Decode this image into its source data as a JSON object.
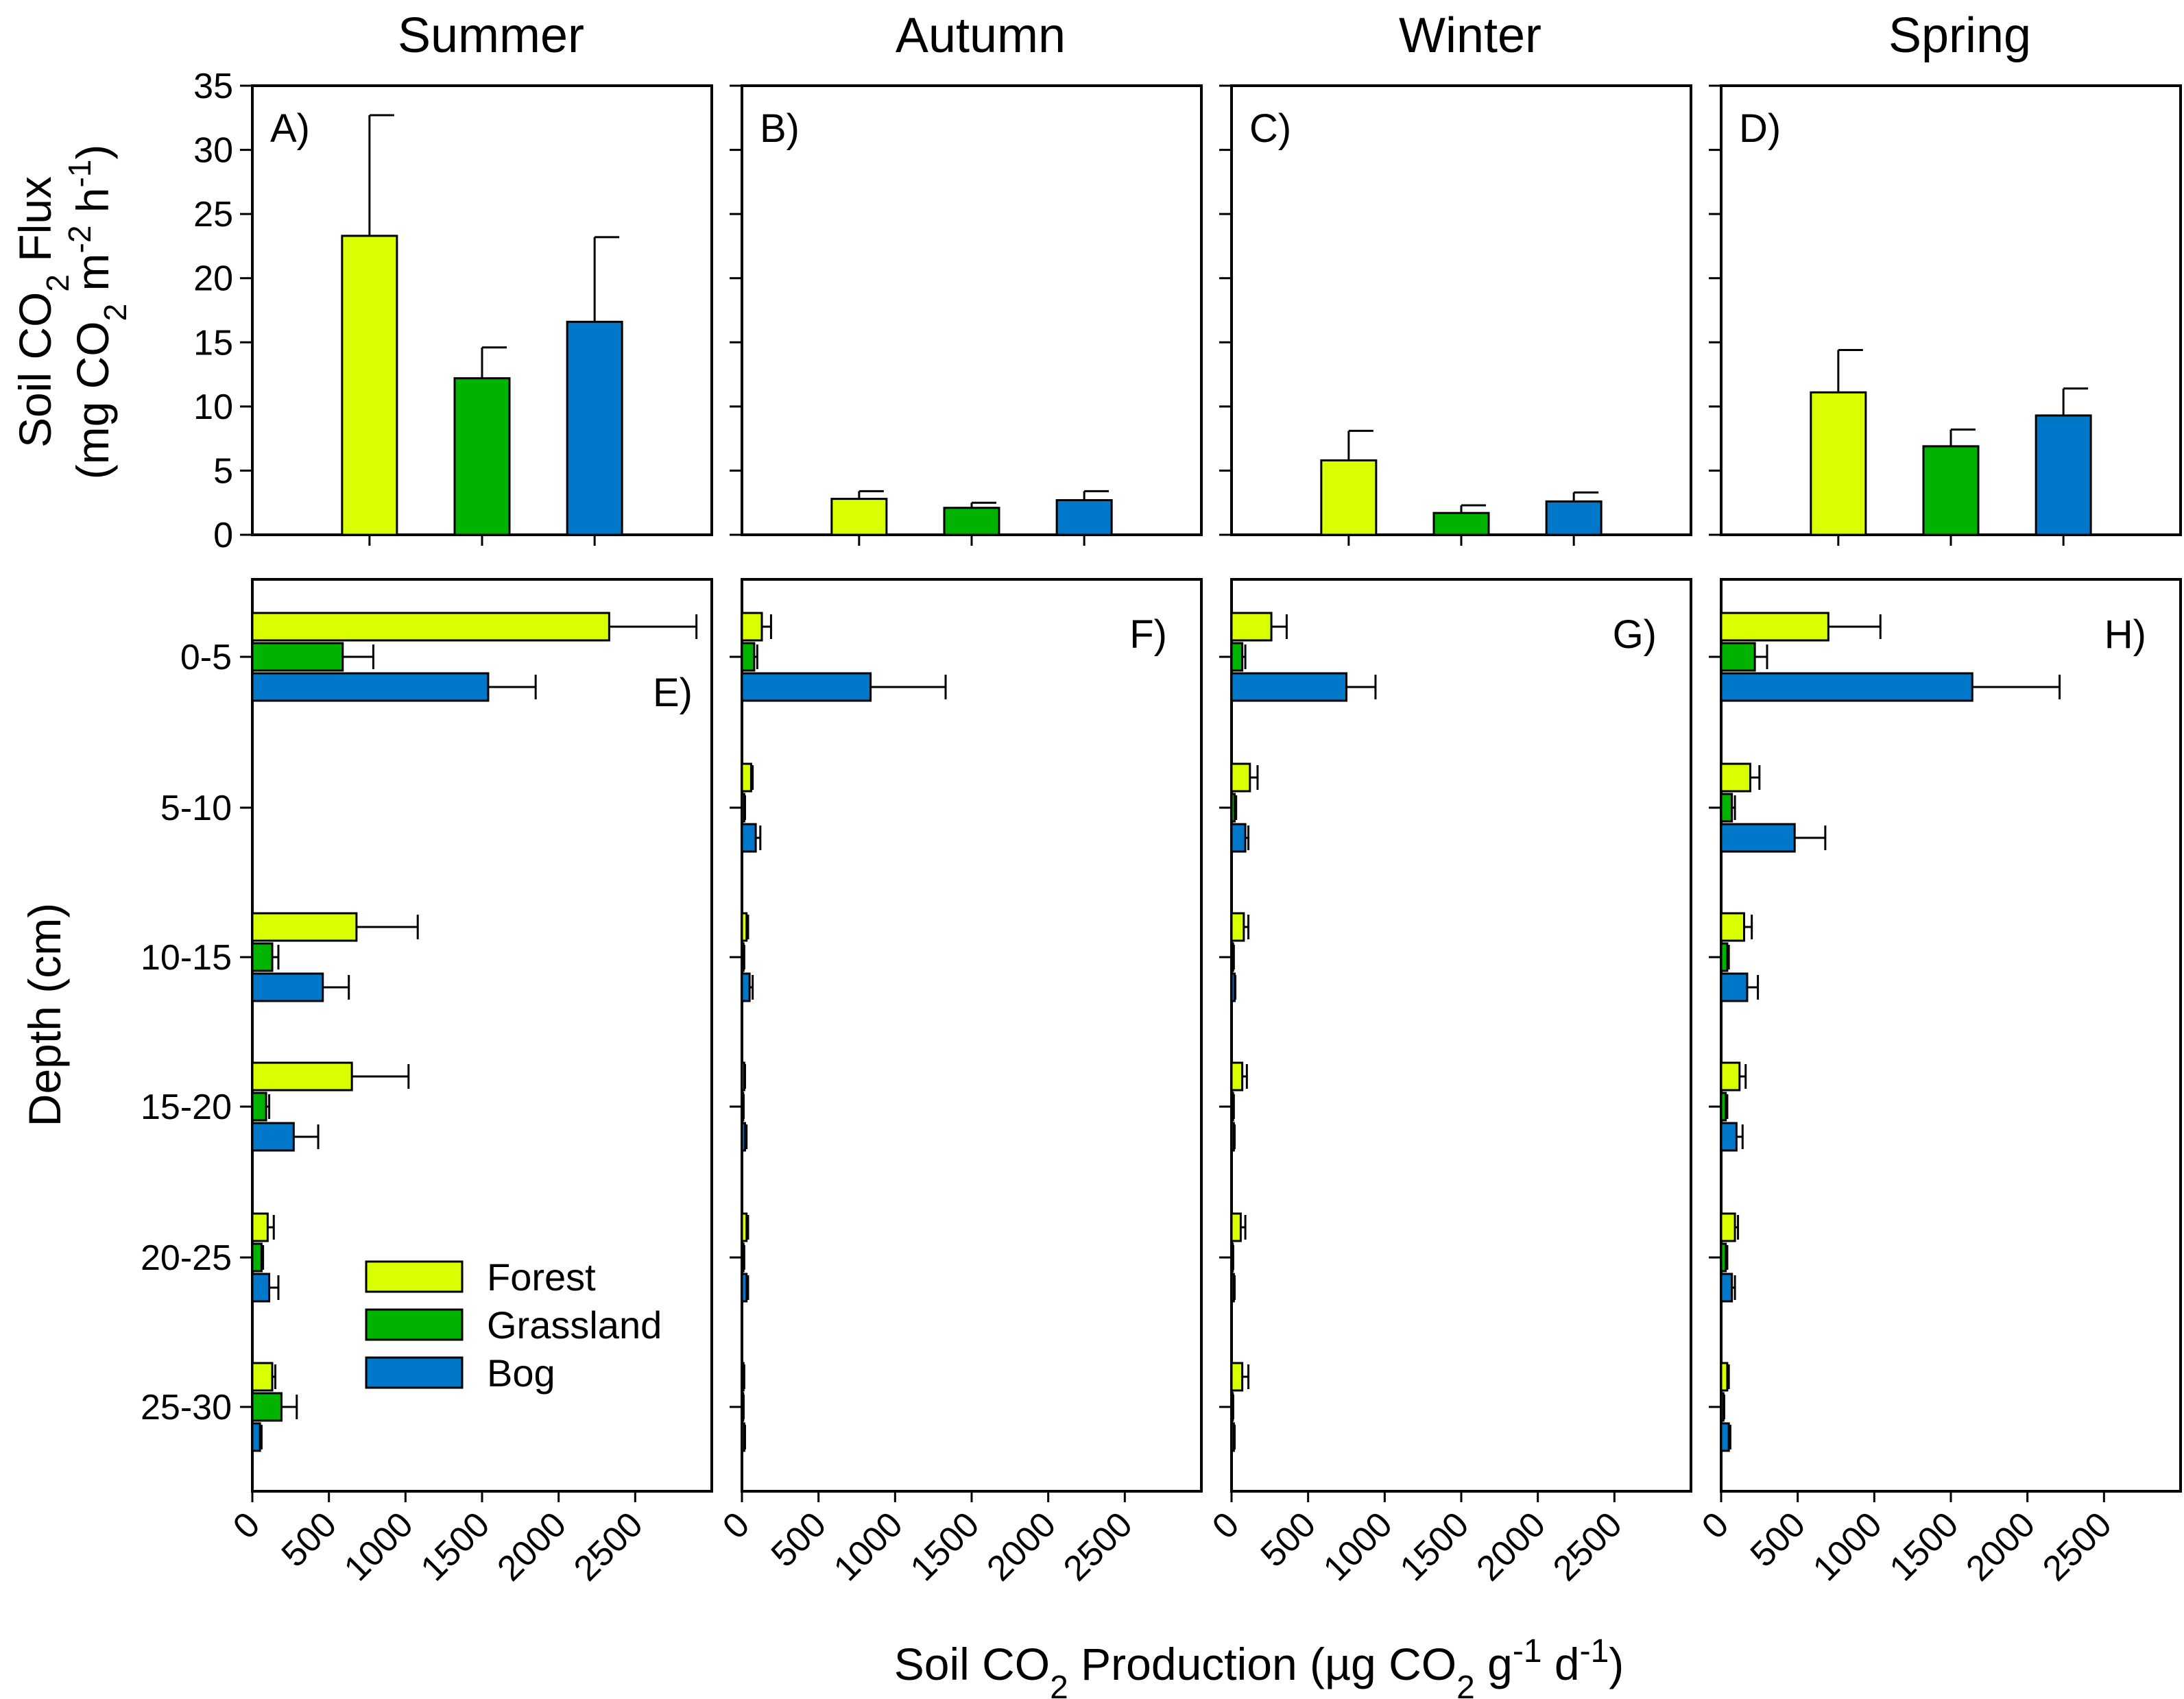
{
  "chart_data": {
    "type": "bar",
    "seasons": [
      "Summer",
      "Autumn",
      "Winter",
      "Spring"
    ],
    "colors": {
      "Forest": "#d9ff00",
      "Grassland": "#00b300",
      "Bog": "#0077c8"
    },
    "legend": {
      "entries": [
        "Forest",
        "Grassland",
        "Bog"
      ],
      "placement": "bottom-right of panel E"
    },
    "flux": {
      "ylabel_line1": "Soil CO",
      "ylabel_sub1": "2",
      "ylabel_mid": " Flux",
      "ylabel_line2": "(mg CO",
      "ylabel_sub2": "2",
      "ylabel_m": " m",
      "ylabel_sup1": "-2",
      "ylabel_h": " h",
      "ylabel_sup2": "-1",
      "ylabel_close": ")",
      "ylim": [
        0,
        35
      ],
      "yticks": [
        "0",
        "5",
        "10",
        "15",
        "20",
        "25",
        "30",
        "35"
      ],
      "panel_labels": [
        "A)",
        "B)",
        "C)",
        "D)"
      ],
      "series": [
        {
          "name": "Forest",
          "values": [
            23.3,
            2.8,
            5.8,
            11.1
          ],
          "errors": [
            9.4,
            0.6,
            2.3,
            3.3
          ]
        },
        {
          "name": "Grassland",
          "values": [
            12.2,
            2.1,
            1.7,
            6.9
          ],
          "errors": [
            2.4,
            0.4,
            0.6,
            1.3
          ]
        },
        {
          "name": "Bog",
          "values": [
            16.6,
            2.7,
            2.6,
            9.3
          ],
          "errors": [
            6.6,
            0.7,
            0.7,
            2.1
          ]
        }
      ]
    },
    "production": {
      "ylabel": "Depth (cm)",
      "xlabel_a": "Soil CO",
      "xlabel_sub1": "2",
      "xlabel_b": " Production (µg CO",
      "xlabel_sub2": "2",
      "xlabel_c": " g",
      "xlabel_sup1": "-1",
      "xlabel_d": " d",
      "xlabel_sup2": "-1",
      "xlabel_e": ")",
      "xlim": [
        0,
        3000
      ],
      "xticks": [
        "0",
        "500",
        "1000",
        "1500",
        "2000",
        "2500"
      ],
      "depths": [
        "0-5",
        "5-10",
        "10-15",
        "15-20",
        "20-25",
        "25-30"
      ],
      "panel_labels": [
        "E)",
        "F)",
        "G)",
        "H)"
      ],
      "panels": [
        {
          "season": "Summer",
          "series": [
            {
              "name": "Forest",
              "values": [
                2330,
                null,
                680,
                650,
                100,
                130
              ],
              "errors": [
                570,
                null,
                400,
                370,
                40,
                20
              ]
            },
            {
              "name": "Grassland",
              "values": [
                590,
                null,
                130,
                90,
                60,
                190
              ],
              "errors": [
                200,
                null,
                40,
                20,
                10,
                100
              ]
            },
            {
              "name": "Bog",
              "values": [
                1540,
                null,
                460,
                270,
                110,
                50
              ],
              "errors": [
                310,
                null,
                170,
                160,
                60,
                10
              ]
            }
          ]
        },
        {
          "season": "Autumn",
          "series": [
            {
              "name": "Forest",
              "values": [
                130,
                60,
                30,
                15,
                30,
                10
              ],
              "errors": [
                60,
                10,
                10,
                5,
                10,
                5
              ]
            },
            {
              "name": "Grassland",
              "values": [
                80,
                15,
                10,
                8,
                10,
                8
              ],
              "errors": [
                20,
                5,
                5,
                3,
                5,
                3
              ]
            },
            {
              "name": "Bog",
              "values": [
                840,
                90,
                50,
                20,
                30,
                15
              ],
              "errors": [
                490,
                30,
                20,
                10,
                10,
                5
              ]
            }
          ]
        },
        {
          "season": "Winter",
          "series": [
            {
              "name": "Forest",
              "values": [
                260,
                120,
                80,
                70,
                60,
                70
              ],
              "errors": [
                100,
                50,
                30,
                30,
                30,
                40
              ]
            },
            {
              "name": "Grassland",
              "values": [
                70,
                20,
                10,
                10,
                8,
                8
              ],
              "errors": [
                20,
                10,
                5,
                5,
                3,
                3
              ]
            },
            {
              "name": "Bog",
              "values": [
                750,
                90,
                20,
                15,
                15,
                15
              ],
              "errors": [
                190,
                20,
                5,
                5,
                5,
                5
              ]
            }
          ]
        },
        {
          "season": "Spring",
          "series": [
            {
              "name": "Forest",
              "values": [
                700,
                190,
                150,
                120,
                90,
                40
              ],
              "errors": [
                340,
                60,
                50,
                40,
                20,
                10
              ]
            },
            {
              "name": "Grassland",
              "values": [
                220,
                70,
                40,
                30,
                30,
                15
              ],
              "errors": [
                80,
                20,
                10,
                10,
                10,
                5
              ]
            },
            {
              "name": "Bog",
              "values": [
                1640,
                480,
                170,
                100,
                70,
                50
              ],
              "errors": [
                570,
                200,
                70,
                40,
                20,
                10
              ]
            }
          ]
        }
      ]
    }
  }
}
